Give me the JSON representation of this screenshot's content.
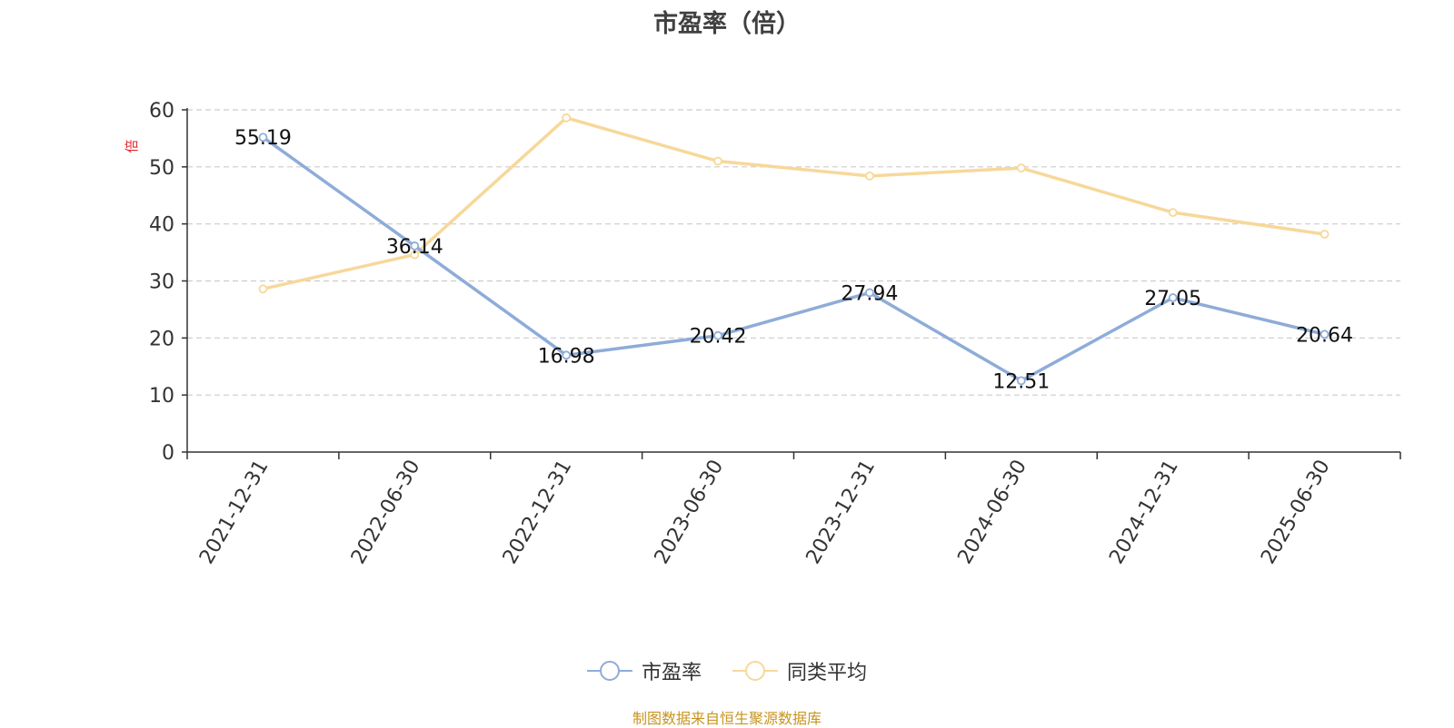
{
  "chart_data": {
    "type": "line",
    "title": "市盈率（倍）",
    "ylabel": "倍",
    "ylim": [
      0,
      60
    ],
    "yticks": [
      0,
      10,
      20,
      30,
      40,
      50,
      60
    ],
    "categories": [
      "2021-12-31",
      "2022-06-30",
      "2022-12-31",
      "2023-06-30",
      "2023-12-31",
      "2024-06-30",
      "2024-12-31",
      "2025-06-30"
    ],
    "series": [
      {
        "name": "市盈率",
        "color": "#8eacd8",
        "values": [
          55.19,
          36.14,
          16.98,
          20.42,
          27.94,
          12.51,
          27.05,
          20.64
        ],
        "labels": [
          "55.19",
          "36.14",
          "16.98",
          "20.42",
          "27.94",
          "12.51",
          "27.05",
          "20.64"
        ]
      },
      {
        "name": "同类平均",
        "color": "#f7d89a",
        "values": [
          28.6,
          34.6,
          58.6,
          51.0,
          48.4,
          49.8,
          42.0,
          38.2
        ]
      }
    ],
    "grid": "horizontal-dashed",
    "legend_position": "bottom-center"
  },
  "source_note": "制图数据来自恒生聚源数据库"
}
